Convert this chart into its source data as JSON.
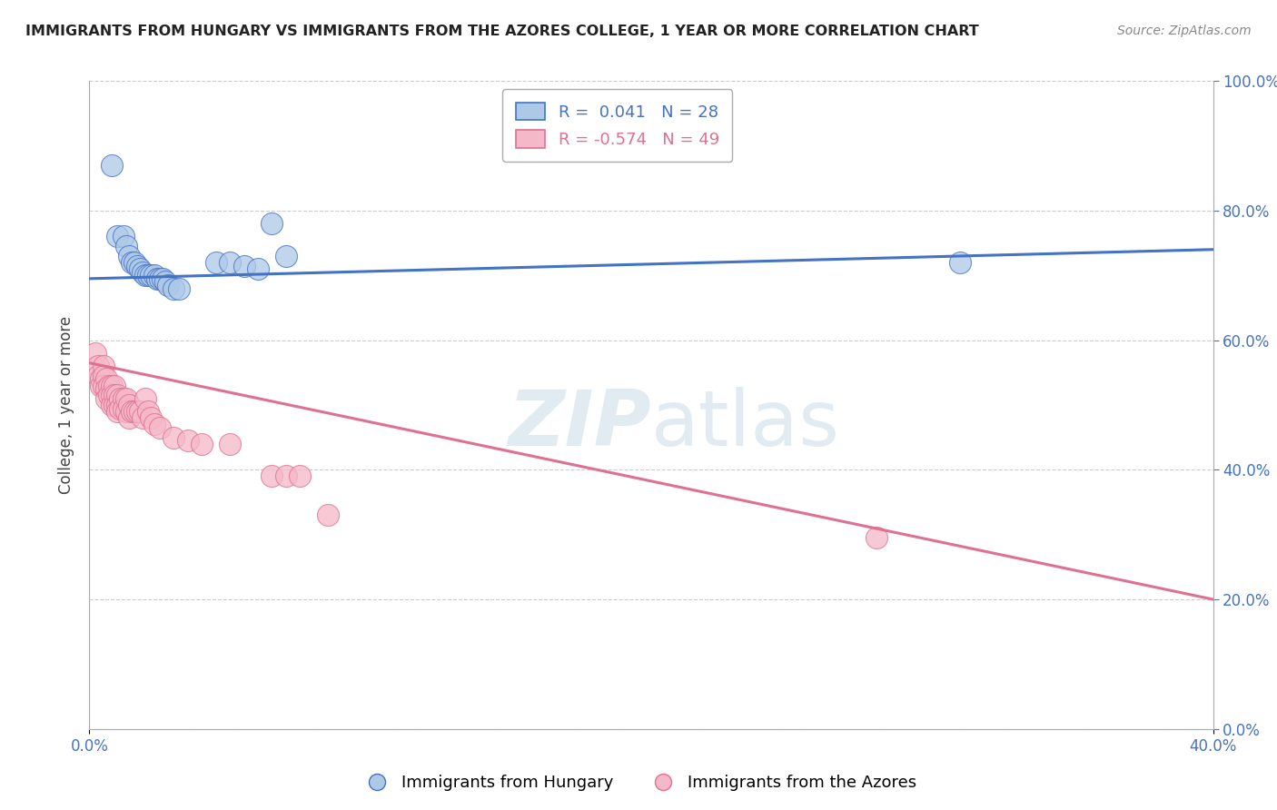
{
  "title": "IMMIGRANTS FROM HUNGARY VS IMMIGRANTS FROM THE AZORES COLLEGE, 1 YEAR OR MORE CORRELATION CHART",
  "source": "Source: ZipAtlas.com",
  "ylabel": "College, 1 year or more",
  "legend_blue_label": "Immigrants from Hungary",
  "legend_pink_label": "Immigrants from the Azores",
  "legend_blue_r": "R =  0.041",
  "legend_blue_n": "N = 28",
  "legend_pink_r": "R = -0.574",
  "legend_pink_n": "N = 49",
  "blue_color": "#adc9e8",
  "pink_color": "#f5b8c8",
  "blue_line_color": "#4472c4",
  "pink_line_color": "#e07090",
  "xlim": [
    0.0,
    0.4
  ],
  "ylim": [
    0.0,
    1.0
  ],
  "blue_dots_x": [
    0.008,
    0.01,
    0.012,
    0.013,
    0.014,
    0.015,
    0.016,
    0.017,
    0.018,
    0.019,
    0.02,
    0.021,
    0.022,
    0.023,
    0.024,
    0.025,
    0.026,
    0.027,
    0.028,
    0.03,
    0.032,
    0.045,
    0.05,
    0.055,
    0.06,
    0.065,
    0.07,
    0.31
  ],
  "blue_dots_y": [
    0.87,
    0.76,
    0.76,
    0.745,
    0.73,
    0.72,
    0.72,
    0.715,
    0.71,
    0.705,
    0.7,
    0.7,
    0.7,
    0.7,
    0.695,
    0.695,
    0.695,
    0.69,
    0.685,
    0.68,
    0.68,
    0.72,
    0.72,
    0.715,
    0.71,
    0.78,
    0.73,
    0.72
  ],
  "pink_dots_x": [
    0.002,
    0.003,
    0.003,
    0.004,
    0.004,
    0.005,
    0.005,
    0.005,
    0.006,
    0.006,
    0.006,
    0.007,
    0.007,
    0.008,
    0.008,
    0.008,
    0.009,
    0.009,
    0.009,
    0.01,
    0.01,
    0.01,
    0.011,
    0.011,
    0.012,
    0.012,
    0.013,
    0.013,
    0.014,
    0.014,
    0.015,
    0.016,
    0.017,
    0.018,
    0.019,
    0.02,
    0.021,
    0.022,
    0.023,
    0.025,
    0.03,
    0.035,
    0.04,
    0.05,
    0.065,
    0.07,
    0.075,
    0.085,
    0.28
  ],
  "pink_dots_y": [
    0.58,
    0.56,
    0.545,
    0.54,
    0.53,
    0.56,
    0.545,
    0.53,
    0.54,
    0.525,
    0.51,
    0.53,
    0.515,
    0.53,
    0.515,
    0.5,
    0.53,
    0.515,
    0.5,
    0.515,
    0.5,
    0.49,
    0.51,
    0.495,
    0.51,
    0.495,
    0.51,
    0.49,
    0.5,
    0.48,
    0.49,
    0.49,
    0.49,
    0.49,
    0.48,
    0.51,
    0.49,
    0.48,
    0.47,
    0.465,
    0.45,
    0.445,
    0.44,
    0.44,
    0.39,
    0.39,
    0.39,
    0.33,
    0.295
  ],
  "background_color": "#ffffff",
  "grid_color": "#cccccc",
  "right_yticks": [
    0.4,
    0.6,
    0.8,
    1.0
  ],
  "right_yticklabels": [
    "40.0%",
    "60.0%",
    "80.0%",
    "100.0%"
  ],
  "xtick_vals": [
    0.0,
    0.4
  ],
  "xtick_labels": [
    "0.0%",
    "40.0%"
  ]
}
